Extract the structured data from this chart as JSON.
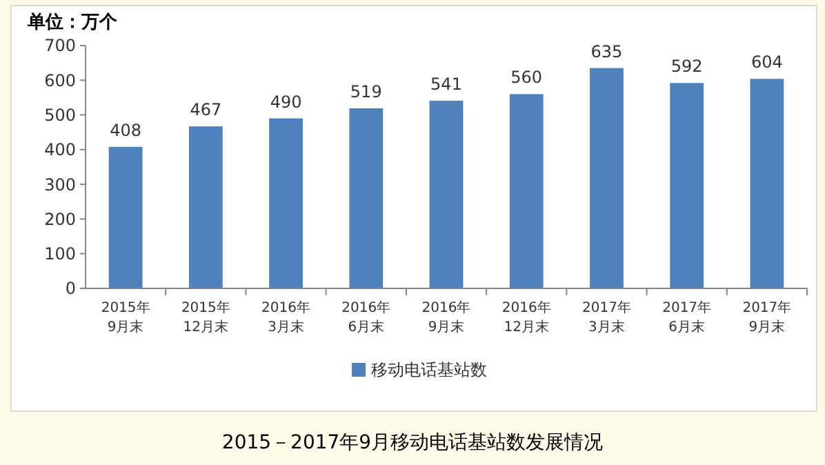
{
  "chart_data": {
    "type": "bar",
    "ylabel": "单位：万个",
    "categories": [
      "2015年\n9月末",
      "2015年\n12月末",
      "2016年\n3月末",
      "2016年\n6月末",
      "2016年\n9月末",
      "2016年\n12月末",
      "2017年\n3月末",
      "2017年\n6月末",
      "2017年\n9月末"
    ],
    "series": [
      {
        "name": "移动电话基站数",
        "color": "#4f81bd",
        "values": [
          408,
          467,
          490,
          519,
          541,
          560,
          635,
          592,
          604
        ]
      }
    ],
    "ylim": [
      0,
      700
    ],
    "yticks": [
      0,
      100,
      200,
      300,
      400,
      500,
      600,
      700
    ],
    "data_labels": true,
    "legend": "bottom",
    "grid": false,
    "annotations": [
      "2015－2017年9月移动电话基站数发展情况"
    ]
  }
}
